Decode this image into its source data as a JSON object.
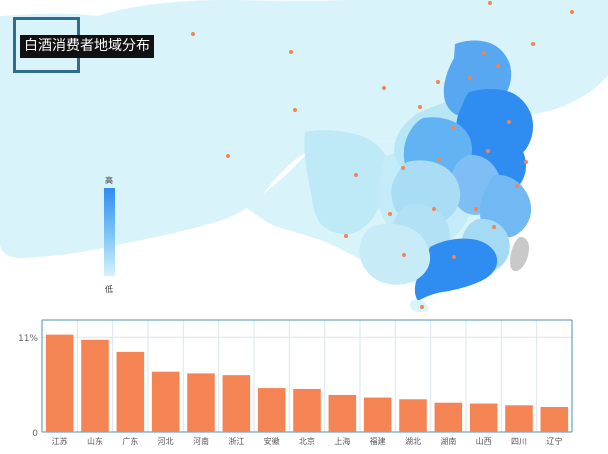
{
  "title": "白酒消费者地域分布",
  "legend": {
    "high_label": "高",
    "low_label": "低"
  },
  "chart_data": {
    "type": "bar",
    "categories": [
      "江苏",
      "山东",
      "广东",
      "河北",
      "河南",
      "浙江",
      "安徽",
      "北京",
      "上海",
      "福建",
      "湖北",
      "湖南",
      "山西",
      "四川",
      "辽宁"
    ],
    "values": [
      11.3,
      10.7,
      9.3,
      7.0,
      6.8,
      6.6,
      5.1,
      5.0,
      4.3,
      4.0,
      3.8,
      3.4,
      3.3,
      3.1,
      2.9
    ],
    "ylim": [
      0,
      13
    ],
    "yticks": [
      {
        "value": 0,
        "label": "0"
      },
      {
        "value": 11,
        "label": "11%"
      }
    ],
    "bar_color": "#f48454",
    "grid": true
  },
  "map": {
    "color_low": "#d4f2fb",
    "color_high": "#2f8cf0",
    "colors": {
      "background": "#ffffff",
      "land": "#d9f3fa",
      "water": "#ffffff",
      "taiwan": "#c9c9c9",
      "dot": "#f48454"
    }
  }
}
